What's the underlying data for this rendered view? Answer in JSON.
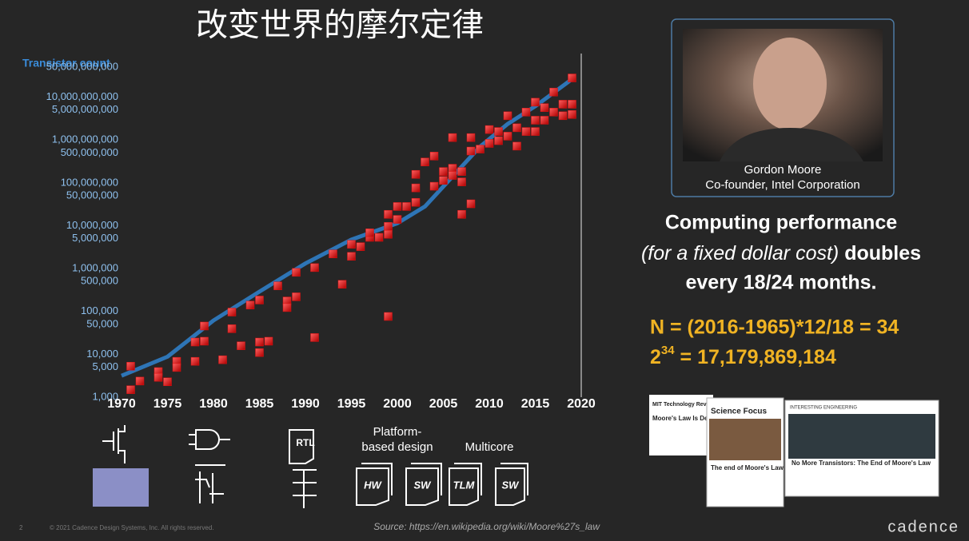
{
  "chart_data": {
    "type": "scatter",
    "title": "改变世界的摩尔定律",
    "ylabel": "Transistor count",
    "yscale": "log",
    "xlim": [
      1970,
      2020
    ],
    "xticks": [
      1970,
      1975,
      1980,
      1985,
      1990,
      1995,
      2000,
      2005,
      2010,
      2015,
      2020
    ],
    "ylim": [
      1000,
      100000000000
    ],
    "yticks": [
      {
        "value": 1000,
        "label": "1,000"
      },
      {
        "value": 5000,
        "label": "5,000"
      },
      {
        "value": 10000,
        "label": "10,000"
      },
      {
        "value": 50000,
        "label": "50,000"
      },
      {
        "value": 100000,
        "label": "100,000"
      },
      {
        "value": 500000,
        "label": "500,000"
      },
      {
        "value": 1000000,
        "label": "1,000,000"
      },
      {
        "value": 5000000,
        "label": "5,000,000"
      },
      {
        "value": 10000000,
        "label": "10,000,000"
      },
      {
        "value": 50000000,
        "label": "50,000,000"
      },
      {
        "value": 100000000,
        "label": "100,000,000"
      },
      {
        "value": 500000000,
        "label": "500,000,000"
      },
      {
        "value": 1000000000,
        "label": "1,000,000,000"
      },
      {
        "value": 5000000000,
        "label": "5,000,000,000"
      },
      {
        "value": 10000000000,
        "label": "10,000,000,000"
      },
      {
        "value": 50000000000,
        "label": "50,000,000,000"
      }
    ],
    "series": [
      {
        "type": "line",
        "color": "#2e75b6",
        "x": [
          1970,
          1975,
          1980,
          1985,
          1990,
          1995,
          2000,
          2003,
          2009,
          2012,
          2015,
          2019
        ],
        "values": [
          3600,
          10000,
          70000,
          330000,
          1500000,
          5400000,
          13000000,
          32000000,
          800000000,
          2700000000,
          7000000000,
          30000000000
        ]
      },
      {
        "type": "scatter",
        "color": "#e01010",
        "x": [
          1971,
          1971,
          1972,
          1974,
          1974,
          1975,
          1976,
          1976,
          1978,
          1978,
          1979,
          1979,
          1981,
          1982,
          1982,
          1983,
          1984,
          1985,
          1985,
          1985,
          1986,
          1987,
          1988,
          1988,
          1989,
          1989,
          1991,
          1991,
          1993,
          1994,
          1995,
          1995,
          1996,
          1997,
          1997,
          1998,
          1999,
          1999,
          1999,
          1999,
          2000,
          2000,
          2001,
          2002,
          2002,
          2002,
          2003,
          2004,
          2004,
          2005,
          2005,
          2006,
          2006,
          2006,
          2007,
          2007,
          2007,
          2008,
          2008,
          2008,
          2009,
          2010,
          2010,
          2011,
          2011,
          2012,
          2012,
          2013,
          2013,
          2014,
          2014,
          2015,
          2015,
          2015,
          2016,
          2016,
          2017,
          2017,
          2018,
          2018,
          2019,
          2019,
          2019
        ],
        "values": [
          6000,
          1700,
          2700,
          4500,
          3300,
          2600,
          7800,
          5600,
          7800,
          22000,
          52000,
          23000,
          8500,
          110000,
          45000,
          18000,
          160000,
          210000,
          22000,
          12500,
          23000,
          450000,
          200000,
          140000,
          250000,
          930000,
          1200000,
          28000,
          2500000,
          490000,
          4200000,
          2200000,
          3700000,
          6100000,
          7800000,
          6100000,
          87000,
          7200000,
          11000000,
          21000000,
          16000000,
          32000000,
          32000000,
          40000000,
          87000000,
          180000000,
          350000000,
          480000000,
          95000000,
          210000000,
          130000000,
          1300000000,
          250000000,
          170000000,
          210000000,
          21000000,
          120000000,
          630000000,
          37000000,
          1300000000,
          700000000,
          2000000000,
          950000000,
          1800000000,
          1100000000,
          4200000000,
          1400000000,
          2200000000,
          820000000,
          5100000000,
          1800000000,
          8700000000,
          3300000000,
          1800000000,
          6500000000,
          3300000000,
          15000000000,
          5100000000,
          7800000000,
          4200000000,
          32000000000,
          7800000000,
          4500000000
        ]
      }
    ]
  },
  "profile": {
    "name": "Gordon Moore",
    "role": "Co-founder, Intel Corporation"
  },
  "claim": {
    "line1": "Computing performance",
    "italic": "(for a fixed dollar cost)",
    "bold": " doubles",
    "line3": "every 18/24 months."
  },
  "formula": {
    "line1": "N = (2016-1965)*12/18 = 34",
    "base": "2",
    "exponent": "34",
    "rest": " = 17,179,869,184"
  },
  "icons": {
    "rtl": "RTL",
    "platform1": "Platform-",
    "platform2": "based design",
    "multicore": "Multicore",
    "hw": "HW",
    "sw1": "SW",
    "tlm": "TLM",
    "sw2": "SW"
  },
  "articles": [
    {
      "source": "MIT Technology Review",
      "headline": "Moore's Law Is De"
    },
    {
      "source": "Science Focus",
      "headline": "The end of Moore's Law"
    },
    {
      "source": "INTERESTING ENGINEERING",
      "headline": "No More Transistors: The End of Moore's Law"
    }
  ],
  "footer": {
    "page": "2",
    "copyright": "© 2021 Cadence Design Systems, Inc. All rights reserved.",
    "source": "Source: https://en.wikipedia.org/wiki/Moore%27s_law",
    "brand": "cadence"
  }
}
